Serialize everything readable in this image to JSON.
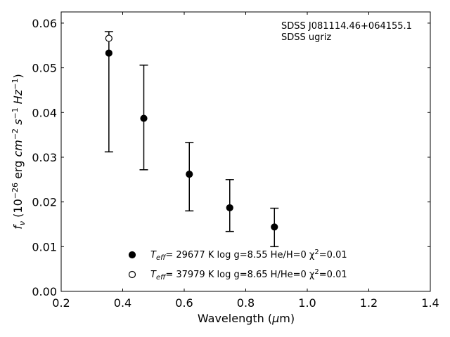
{
  "chart_data": {
    "type": "scatter",
    "x_unit_note": "",
    "xlim": [
      0.2,
      1.4
    ],
    "ylim": [
      0.0,
      0.0625
    ],
    "x_ticks": [
      0.2,
      0.4,
      0.6,
      0.8,
      1.0,
      1.2,
      1.4
    ],
    "y_ticks": [
      0.0,
      0.01,
      0.02,
      0.03,
      0.04,
      0.05,
      0.06
    ],
    "x_tick_labels": [
      "0.2",
      "0.4",
      "0.6",
      "0.8",
      "1.0",
      "1.2",
      "1.4"
    ],
    "y_tick_labels": [
      "0.00",
      "0.01",
      "0.02",
      "0.03",
      "0.04",
      "0.05",
      "0.06"
    ],
    "grid": false,
    "xlabel": "Wavelength (μm)",
    "ylabel": "fν (10−26 erg cm−2 s−1 Hz−1)",
    "annotations": [
      "SDSS J081114.46+064155.1",
      "SDSS ugriz"
    ],
    "observed": {
      "x": [
        0.3551,
        0.4686,
        0.6166,
        0.748,
        0.8932
      ],
      "y": [
        0.0533,
        0.0387,
        0.0262,
        0.0187,
        0.0144
      ],
      "yerr_low": [
        0.0312,
        0.0272,
        0.018,
        0.0134,
        0.01
      ],
      "yerr_high": [
        0.0581,
        0.0506,
        0.0333,
        0.025,
        0.0186
      ]
    },
    "series": [
      {
        "name": "Teff= 29677 K  log g=8.55  He/H=0  χ2=0.01",
        "marker": "filled",
        "x": [
          0.3551,
          0.4686,
          0.6166,
          0.748,
          0.8932
        ],
        "y": [
          0.0533,
          0.0387,
          0.0262,
          0.0187,
          0.0144
        ]
      },
      {
        "name": "Teff= 37979 K  log g=8.65  H/He=0  χ2=0.01",
        "marker": "open",
        "x": [
          0.3551
        ],
        "y": [
          0.0566
        ]
      }
    ],
    "legend_placement": "bottom-center",
    "legend": [
      {
        "pre": "T",
        "sub": "eff",
        "mid": "= 29677 K  log g=8.55  He/H=0  χ",
        "sup": "2",
        "post": "=0.01"
      },
      {
        "pre": "T",
        "sub": "eff",
        "mid": "= 37979 K  log g=8.65  H/He=0  χ",
        "sup": "2",
        "post": "=0.01"
      }
    ],
    "colors": {
      "marker": "#000000",
      "axes": "#000000",
      "background": "#ffffff"
    }
  }
}
